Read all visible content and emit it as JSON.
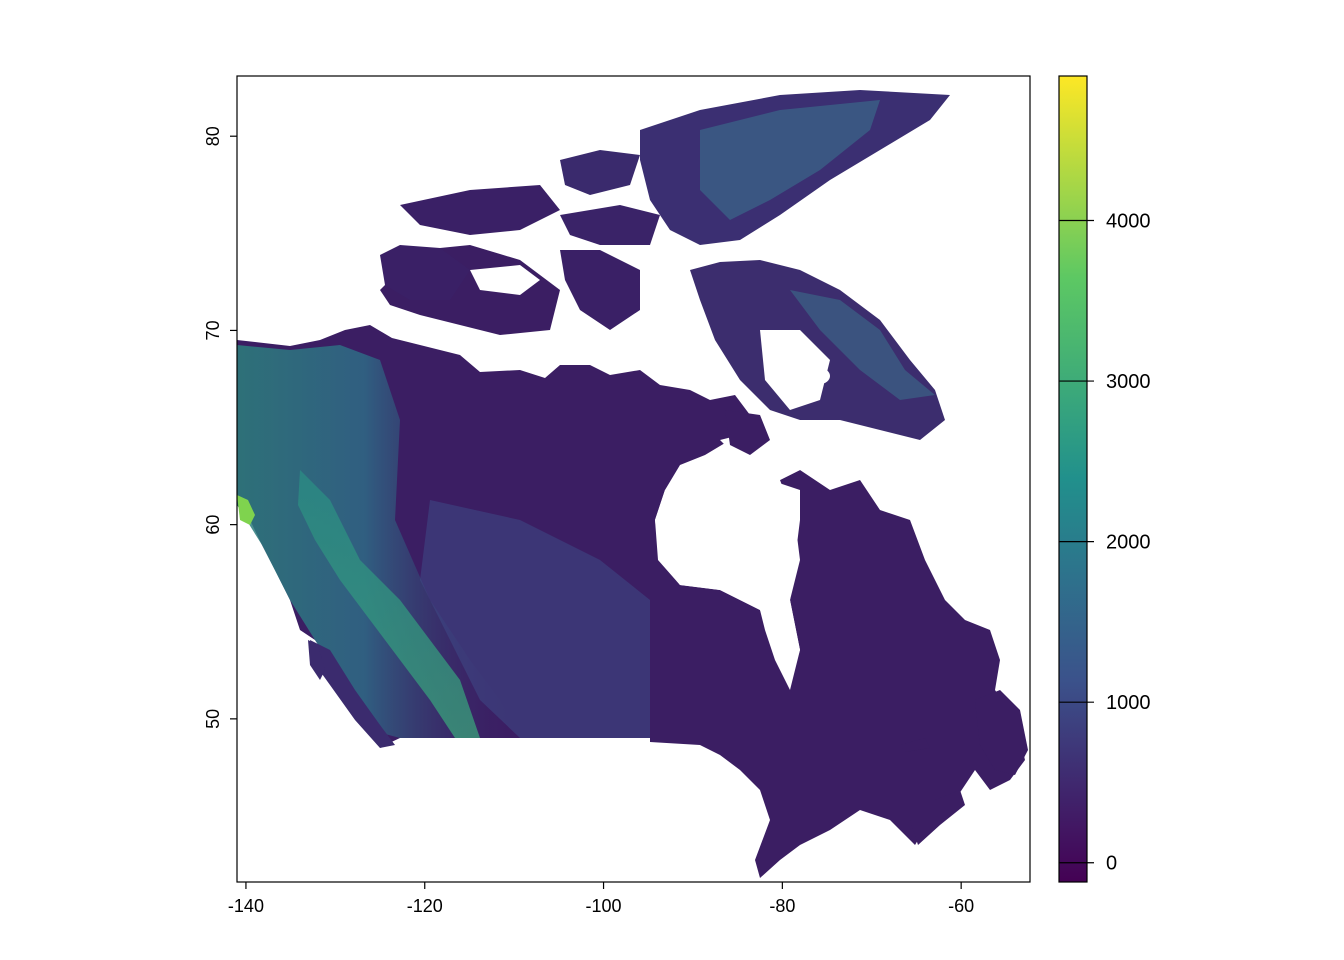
{
  "map": {
    "type": "raster-heatmap",
    "region": "Canada elevation",
    "palette": "viridis",
    "colors": [
      "#440154",
      "#3b528b",
      "#21908c",
      "#5dc863",
      "#fde725"
    ],
    "land_base_color": "#3b1e63",
    "background": "#ffffff",
    "x_ticks": [
      -140,
      -120,
      -100,
      -80,
      -60
    ],
    "x_tick_labels": [
      "-140",
      "-120",
      "-100",
      "-80",
      "-60"
    ],
    "y_ticks": [
      50,
      60,
      70,
      80
    ],
    "y_tick_labels": [
      "50",
      "60",
      "70",
      "80"
    ],
    "xlim": [
      -141,
      -52.3
    ],
    "ylim": [
      41.6,
      83.1
    ],
    "legend": {
      "position": "right",
      "ticks": [
        0,
        1000,
        2000,
        3000,
        4000
      ],
      "tick_labels": [
        "0",
        "1000",
        "2000",
        "3000",
        "4000"
      ],
      "range": [
        -120,
        4900
      ]
    }
  },
  "chart_data": {
    "type": "heatmap",
    "title": "",
    "xlabel": "",
    "ylabel": "",
    "xlim": [
      -141,
      -52.3
    ],
    "ylim": [
      41.6,
      83.1
    ],
    "x_ticks": [
      -140,
      -120,
      -100,
      -80,
      -60
    ],
    "y_ticks": [
      50,
      60,
      70,
      80
    ],
    "value_range": [
      -120,
      4900
    ],
    "colorbar_ticks": [
      0,
      1000,
      2000,
      3000,
      4000
    ],
    "grid": false,
    "legend": "right"
  }
}
